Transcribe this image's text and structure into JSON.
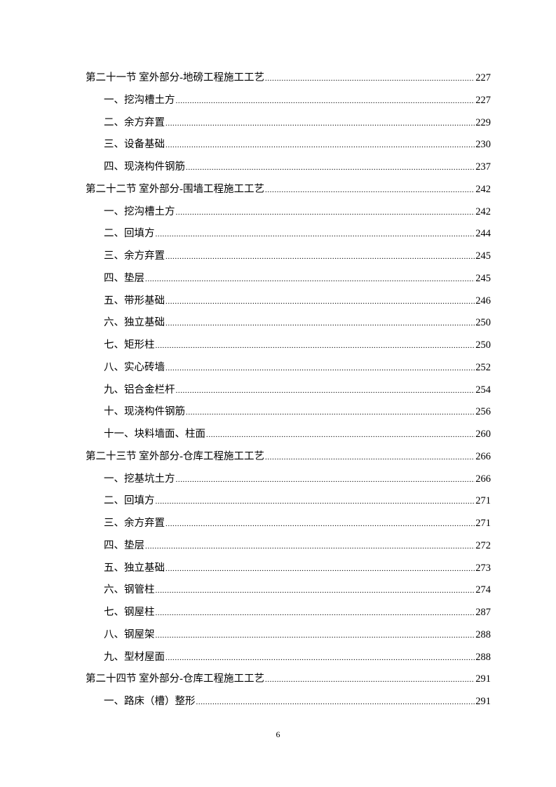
{
  "toc": [
    {
      "level": 1,
      "title": "第二十一节  室外部分-地磅工程施工工艺",
      "page": "227"
    },
    {
      "level": 2,
      "title": "一、挖沟槽土方",
      "page": "227"
    },
    {
      "level": 2,
      "title": "二、余方弃置",
      "page": "229"
    },
    {
      "level": 2,
      "title": "三、设备基础",
      "page": "230"
    },
    {
      "level": 2,
      "title": "四、现浇构件钢筋",
      "page": "237"
    },
    {
      "level": 1,
      "title": "第二十二节  室外部分-围墙工程施工工艺",
      "page": "242"
    },
    {
      "level": 2,
      "title": "一、挖沟槽土方",
      "page": "242"
    },
    {
      "level": 2,
      "title": "二、回填方",
      "page": "244"
    },
    {
      "level": 2,
      "title": "三、余方弃置",
      "page": "245"
    },
    {
      "level": 2,
      "title": "四、垫层",
      "page": "245"
    },
    {
      "level": 2,
      "title": "五、带形基础",
      "page": "246"
    },
    {
      "level": 2,
      "title": "六、独立基础",
      "page": "250"
    },
    {
      "level": 2,
      "title": "七、矩形柱",
      "page": "250"
    },
    {
      "level": 2,
      "title": "八、实心砖墙",
      "page": "252"
    },
    {
      "level": 2,
      "title": "九、铝合金栏杆",
      "page": "254"
    },
    {
      "level": 2,
      "title": "十、现浇构件钢筋",
      "page": "256"
    },
    {
      "level": 2,
      "title": "十一、块料墙面、柱面",
      "page": "260"
    },
    {
      "level": 1,
      "title": "第二十三节  室外部分-仓库工程施工工艺",
      "page": "266"
    },
    {
      "level": 2,
      "title": "一、挖基坑土方",
      "page": "266"
    },
    {
      "level": 2,
      "title": "二、回填方",
      "page": "271"
    },
    {
      "level": 2,
      "title": "三、余方弃置",
      "page": "271"
    },
    {
      "level": 2,
      "title": "四、垫层",
      "page": "272"
    },
    {
      "level": 2,
      "title": "五、独立基础",
      "page": "273"
    },
    {
      "level": 2,
      "title": "六、钢管柱",
      "page": "274"
    },
    {
      "level": 2,
      "title": "七、钢屋柱",
      "page": "287"
    },
    {
      "level": 2,
      "title": "八、钢屋架",
      "page": "288"
    },
    {
      "level": 2,
      "title": "九、型材屋面",
      "page": "288"
    },
    {
      "level": 1,
      "title": "第二十四节  室外部分-仓库工程施工工艺",
      "page": "291"
    },
    {
      "level": 2,
      "title": "一、路床（槽）整形",
      "page": "291"
    }
  ],
  "page_number": "6"
}
